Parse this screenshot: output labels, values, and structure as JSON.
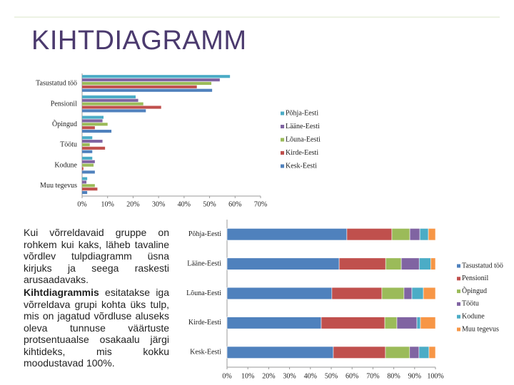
{
  "slide": {
    "title": "KIHTDIAGRAMM",
    "paragraphs": [
      {
        "text": "Kui võrreldavaid gruppe on rohkem kui kaks, läheb tavaline võrdlev tulpdiagramm üsna kirjuks ja seega raskesti arusaadavaks."
      },
      {
        "bold": "Kihtdiagrammis",
        "text": " esitatakse iga võrreldava grupi kohta üks tulp, mis on jagatud võrdluse aluseks oleva tunnuse väärtuste protsentuaalse osakaalu järgi kihtideks, mis kokku moodustavad 100%."
      }
    ]
  },
  "chart_data": [
    {
      "type": "bar",
      "orientation": "horizontal",
      "stacked": false,
      "legend": "right",
      "categories": [
        "Tasustatud töö",
        "Pensionil",
        "Õpingud",
        "Töötu",
        "Kodune",
        "Muu tegevus"
      ],
      "series": [
        {
          "name": "Põhja-Eesti",
          "color": "#4bacc6",
          "values": [
            58,
            21,
            8.4,
            4,
            4,
            2
          ]
        },
        {
          "name": "Lääne-Eesti",
          "color": "#8064a2",
          "values": [
            54,
            22,
            8,
            8,
            5,
            1.7
          ]
        },
        {
          "name": "Lõuna-Eesti",
          "color": "#9bbb59",
          "values": [
            50.7,
            24,
            10,
            3,
            4.5,
            5
          ]
        },
        {
          "name": "Kirde-Eesti",
          "color": "#c0504d",
          "values": [
            45,
            31,
            5,
            9,
            0.5,
            6
          ]
        },
        {
          "name": "Kesk-Eesti",
          "color": "#4f81bd",
          "values": [
            51,
            25,
            11.5,
            4,
            5,
            2
          ]
        }
      ],
      "xlim": [
        0,
        70
      ],
      "xticks": [
        {
          "value": 0,
          "label": "0%"
        },
        {
          "value": 10,
          "label": "10%"
        },
        {
          "value": 20,
          "label": "20%"
        },
        {
          "value": 30,
          "label": "30%"
        },
        {
          "value": 40,
          "label": "40%"
        },
        {
          "value": 50,
          "label": "50%"
        },
        {
          "value": 60,
          "label": "60%"
        },
        {
          "value": 70,
          "label": "70%"
        }
      ]
    },
    {
      "type": "bar",
      "orientation": "horizontal",
      "stacked": true,
      "legend": "right",
      "categories": [
        "Põhja-Eesti",
        "Lääne-Eesti",
        "Lõuna-Eesti",
        "Kirde-Eesti",
        "Kesk-Eesti"
      ],
      "series": [
        {
          "name": "Tasustatud töö",
          "color": "#4f81bd",
          "values": [
            57.5,
            53.8,
            50.3,
            45.2,
            51
          ]
        },
        {
          "name": "Pensionil",
          "color": "#c0504d",
          "values": [
            21.6,
            22.3,
            24,
            30.5,
            25
          ]
        },
        {
          "name": "Õpingud",
          "color": "#9bbb59",
          "values": [
            8.6,
            7.5,
            10.6,
            5.8,
            11.6
          ]
        },
        {
          "name": "Töötu",
          "color": "#8064a2",
          "values": [
            4.8,
            8.6,
            3.8,
            9.6,
            4.5
          ]
        },
        {
          "name": "Kodune",
          "color": "#4bacc6",
          "values": [
            4.1,
            5.5,
            5.5,
            1.7,
            4.8
          ]
        },
        {
          "name": "Muu tegevus",
          "color": "#f79646",
          "values": [
            3.4,
            2.3,
            5.8,
            7.2,
            3.1
          ]
        }
      ],
      "xlim": [
        0,
        100
      ],
      "xticks": [
        {
          "value": 0,
          "label": "0%"
        },
        {
          "value": 10,
          "label": "10%"
        },
        {
          "value": 20,
          "label": "20%"
        },
        {
          "value": 30,
          "label": "30%"
        },
        {
          "value": 40,
          "label": "40%"
        },
        {
          "value": 50,
          "label": "50%"
        },
        {
          "value": 60,
          "label": "60%"
        },
        {
          "value": 70,
          "label": "70%"
        },
        {
          "value": 80,
          "label": "80%"
        },
        {
          "value": 90,
          "label": "90%"
        },
        {
          "value": 100,
          "label": "100%"
        }
      ]
    }
  ]
}
